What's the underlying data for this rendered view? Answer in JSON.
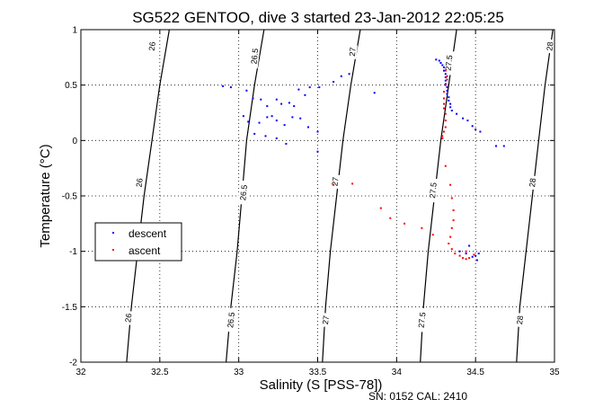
{
  "chart_data": {
    "type": "scatter",
    "title": "SG522 GENTOO, dive 3 started 23-Jan-2012 22:05:25",
    "xlabel": "Salinity (S [PSS-78])",
    "ylabel": "Temperature (°C)",
    "footer": "SN: 0152  CAL: 2410",
    "xlim": [
      32,
      35
    ],
    "ylim": [
      -2,
      1
    ],
    "grid": true,
    "legend_position": "middle-left",
    "x_ticks": [
      32,
      32.5,
      33,
      33.5,
      34,
      34.5,
      35
    ],
    "x_tick_labels": [
      "32",
      "32.5",
      "33",
      "33.5",
      "34",
      "34.5",
      "35"
    ],
    "y_ticks": [
      -2,
      -1.5,
      -1,
      -0.5,
      0,
      0.5,
      1
    ],
    "y_tick_labels": [
      "-2",
      "-1.5",
      "-1",
      "-0.5",
      "0",
      "0.5",
      "1"
    ],
    "contours": [
      {
        "label": "26",
        "points": [
          [
            32.29,
            -2.0
          ],
          [
            32.32,
            -1.5
          ],
          [
            32.36,
            -1.0
          ],
          [
            32.4,
            -0.5
          ],
          [
            32.45,
            0.0
          ],
          [
            32.5,
            0.5
          ],
          [
            32.56,
            1.0
          ]
        ],
        "label_at": [
          [
            32.3,
            -1.6
          ],
          [
            32.37,
            -0.38
          ],
          [
            32.45,
            0.85
          ]
        ]
      },
      {
        "label": "26.5",
        "points": [
          [
            32.92,
            -2.0
          ],
          [
            32.95,
            -1.5
          ],
          [
            32.99,
            -1.0
          ],
          [
            33.02,
            -0.5
          ],
          [
            33.05,
            0.0
          ],
          [
            33.1,
            0.5
          ],
          [
            33.16,
            1.0
          ]
        ],
        "label_at": [
          [
            32.95,
            -1.62
          ],
          [
            33.03,
            -0.47
          ],
          [
            33.1,
            0.76
          ]
        ]
      },
      {
        "label": "27",
        "points": [
          [
            33.53,
            -2.0
          ],
          [
            33.55,
            -1.5
          ],
          [
            33.58,
            -1.0
          ],
          [
            33.62,
            -0.5
          ],
          [
            33.66,
            0.0
          ],
          [
            33.71,
            0.5
          ],
          [
            33.77,
            1.0
          ]
        ],
        "label_at": [
          [
            33.55,
            -1.62
          ],
          [
            33.61,
            -0.37
          ],
          [
            33.72,
            0.8
          ]
        ]
      },
      {
        "label": "27.5",
        "points": [
          [
            34.15,
            -2.0
          ],
          [
            34.17,
            -1.5
          ],
          [
            34.2,
            -1.0
          ],
          [
            34.24,
            -0.5
          ],
          [
            34.28,
            0.0
          ],
          [
            34.33,
            0.5
          ],
          [
            34.38,
            1.0
          ]
        ],
        "label_at": [
          [
            34.16,
            -1.62
          ],
          [
            34.23,
            -0.45
          ],
          [
            34.33,
            0.7
          ]
        ]
      },
      {
        "label": "28",
        "points": [
          [
            34.76,
            -2.0
          ],
          [
            34.78,
            -1.5
          ],
          [
            34.82,
            -1.0
          ],
          [
            34.86,
            -0.5
          ],
          [
            34.9,
            0.0
          ],
          [
            34.94,
            0.5
          ],
          [
            34.99,
            1.0
          ]
        ],
        "label_at": [
          [
            34.78,
            -1.62
          ],
          [
            34.86,
            -0.38
          ],
          [
            34.97,
            0.85
          ]
        ]
      }
    ],
    "series": [
      {
        "name": "descent",
        "color": "#0000ff",
        "points": [
          [
            32.9,
            0.49
          ],
          [
            32.95,
            0.48
          ],
          [
            33.05,
            0.45
          ],
          [
            33.09,
            0.38
          ],
          [
            33.14,
            0.37
          ],
          [
            33.18,
            0.31
          ],
          [
            33.24,
            0.37
          ],
          [
            33.27,
            0.33
          ],
          [
            33.32,
            0.34
          ],
          [
            33.35,
            0.31
          ],
          [
            33.38,
            0.46
          ],
          [
            33.42,
            0.41
          ],
          [
            33.45,
            0.48
          ],
          [
            33.51,
            0.48
          ],
          [
            33.6,
            0.53
          ],
          [
            33.65,
            0.58
          ],
          [
            33.7,
            0.6
          ],
          [
            33.86,
            0.43
          ],
          [
            33.03,
            0.22
          ],
          [
            33.06,
            0.17
          ],
          [
            33.13,
            0.16
          ],
          [
            33.18,
            0.21
          ],
          [
            33.21,
            0.22
          ],
          [
            33.24,
            0.18
          ],
          [
            33.29,
            0.14
          ],
          [
            33.34,
            0.21
          ],
          [
            33.39,
            0.2
          ],
          [
            33.44,
            0.12
          ],
          [
            33.1,
            0.06
          ],
          [
            33.17,
            0.04
          ],
          [
            33.24,
            0.02
          ],
          [
            33.3,
            -0.03
          ],
          [
            33.5,
            0.08
          ],
          [
            33.5,
            -0.1
          ],
          [
            34.25,
            0.73
          ],
          [
            34.27,
            0.72
          ],
          [
            34.28,
            0.7
          ],
          [
            34.29,
            0.68
          ],
          [
            34.3,
            0.66
          ],
          [
            34.3,
            0.63
          ],
          [
            34.31,
            0.6
          ],
          [
            34.31,
            0.57
          ],
          [
            34.31,
            0.54
          ],
          [
            34.31,
            0.51
          ],
          [
            34.32,
            0.48
          ],
          [
            34.32,
            0.45
          ],
          [
            34.32,
            0.42
          ],
          [
            34.33,
            0.39
          ],
          [
            34.33,
            0.36
          ],
          [
            34.34,
            0.33
          ],
          [
            34.34,
            0.3
          ],
          [
            34.35,
            0.27
          ],
          [
            34.38,
            0.24
          ],
          [
            34.42,
            0.2
          ],
          [
            34.45,
            0.18
          ],
          [
            34.48,
            0.13
          ],
          [
            34.5,
            0.1
          ],
          [
            34.53,
            0.08
          ],
          [
            34.63,
            -0.05
          ],
          [
            34.68,
            -0.05
          ],
          [
            34.4,
            -1.0
          ],
          [
            34.44,
            -1.02
          ],
          [
            34.46,
            -0.95
          ],
          [
            34.48,
            -1.05
          ],
          [
            34.5,
            -1.04
          ],
          [
            34.51,
            -1.08
          ],
          [
            34.52,
            -1.02
          ]
        ]
      },
      {
        "name": "ascent",
        "color": "#ff0000",
        "points": [
          [
            33.6,
            -0.4
          ],
          [
            33.72,
            -0.39
          ],
          [
            33.9,
            -0.61
          ],
          [
            33.96,
            -0.7
          ],
          [
            34.05,
            -0.75
          ],
          [
            34.16,
            -0.79
          ],
          [
            34.23,
            -0.85
          ],
          [
            34.31,
            0.63
          ],
          [
            34.32,
            0.58
          ],
          [
            34.32,
            0.55
          ],
          [
            34.31,
            0.5
          ],
          [
            34.3,
            0.44
          ],
          [
            34.3,
            0.38
          ],
          [
            34.3,
            0.33
          ],
          [
            34.3,
            0.29
          ],
          [
            34.31,
            0.24
          ],
          [
            34.31,
            0.18
          ],
          [
            34.31,
            0.12
          ],
          [
            34.3,
            0.08
          ],
          [
            34.29,
            0.04
          ],
          [
            34.29,
            0.02
          ],
          [
            34.31,
            -0.23
          ],
          [
            34.34,
            -0.4
          ],
          [
            34.35,
            -0.52
          ],
          [
            34.36,
            -0.63
          ],
          [
            34.36,
            -0.72
          ],
          [
            34.35,
            -0.79
          ],
          [
            34.34,
            -0.87
          ],
          [
            34.33,
            -0.93
          ],
          [
            34.35,
            -0.98
          ],
          [
            34.37,
            -1.02
          ],
          [
            34.4,
            -1.04
          ],
          [
            34.42,
            -1.06
          ],
          [
            34.44,
            -1.07
          ],
          [
            34.46,
            -1.06
          ],
          [
            34.49,
            -1.03
          ],
          [
            34.44,
            -1.0
          ]
        ]
      }
    ]
  }
}
